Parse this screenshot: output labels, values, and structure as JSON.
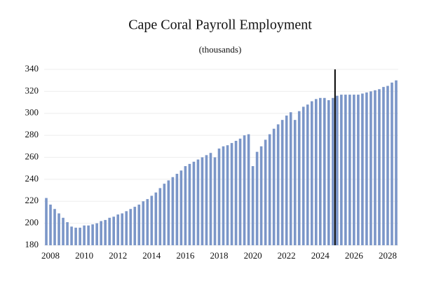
{
  "chart_data": {
    "type": "bar",
    "title": "Cape Coral Payroll Employment",
    "subtitle": "(thousands)",
    "categories": [
      null,
      "2008",
      null,
      null,
      null,
      null,
      null,
      null,
      null,
      "2010",
      null,
      null,
      null,
      null,
      null,
      null,
      null,
      "2012",
      null,
      null,
      null,
      null,
      null,
      null,
      null,
      "2014",
      null,
      null,
      null,
      null,
      null,
      null,
      null,
      "2016",
      null,
      null,
      null,
      null,
      null,
      null,
      null,
      "2018",
      null,
      null,
      null,
      null,
      null,
      null,
      null,
      "2020",
      null,
      null,
      null,
      null,
      null,
      null,
      null,
      "2022",
      null,
      null,
      null,
      null,
      null,
      null,
      null,
      "2024",
      null,
      null,
      null,
      null,
      null,
      null,
      null,
      "2026",
      null,
      null,
      null,
      null,
      null,
      null,
      null,
      "2028",
      null,
      null
    ],
    "values": [
      223,
      217,
      213,
      209,
      205,
      201,
      197,
      196,
      196,
      198,
      198,
      199,
      200,
      202,
      203,
      205,
      206,
      208,
      209,
      211,
      213,
      215,
      217,
      220,
      222,
      225,
      228,
      232,
      236,
      239,
      242,
      245,
      248,
      252,
      254,
      256,
      258,
      260,
      262,
      264,
      260,
      268,
      270,
      271,
      273,
      275,
      277,
      280,
      281,
      252,
      265,
      270,
      276,
      281,
      286,
      290,
      294,
      298,
      301,
      294,
      302,
      306,
      308,
      311,
      313,
      314,
      314,
      312,
      314,
      316,
      317,
      317,
      317,
      317,
      317,
      318,
      319,
      320,
      321,
      322,
      324,
      325,
      328,
      330
    ],
    "color": "#7b96c8",
    "ylim": [
      180,
      340
    ],
    "yticks": [
      180,
      200,
      220,
      240,
      260,
      280,
      300,
      320,
      340
    ],
    "grid": true,
    "vline_category": 68.5,
    "vline_color": "#000000"
  }
}
